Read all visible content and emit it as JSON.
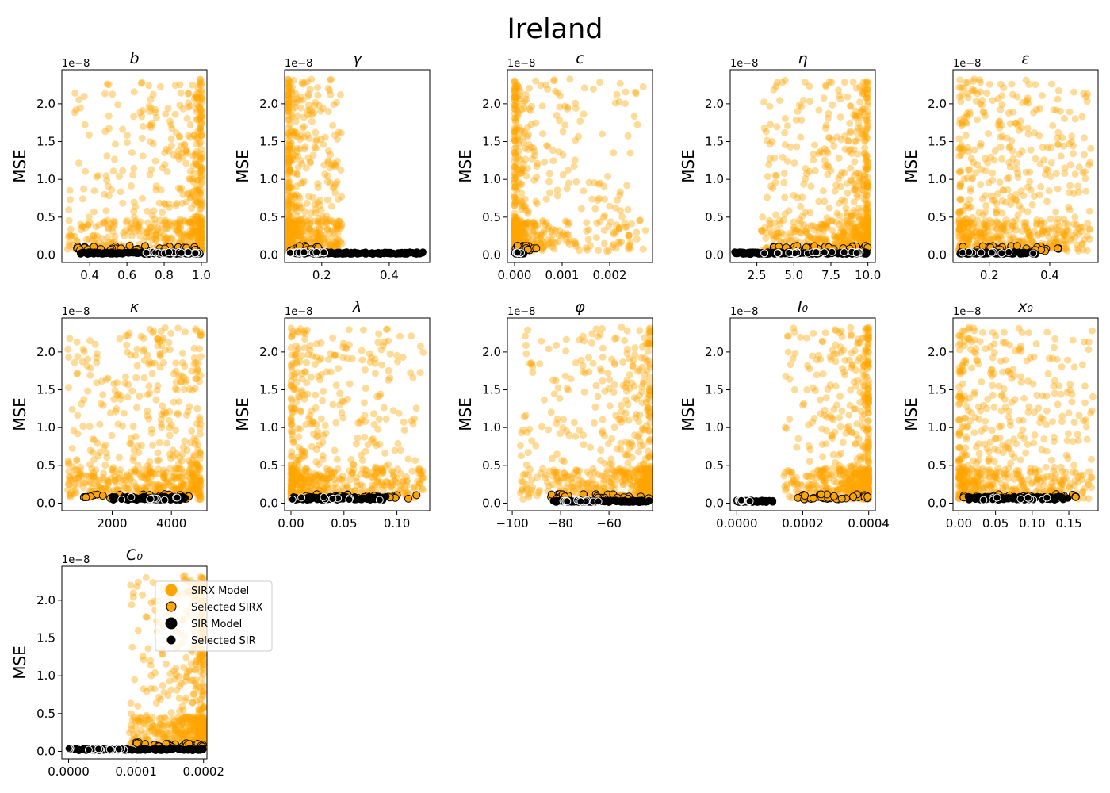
{
  "figure": {
    "title": "Ireland"
  },
  "legend": {
    "placement": "upper-center-of-last-panel",
    "entries": [
      {
        "label": "SIRX Model",
        "color": "#ffa500",
        "edge": "none"
      },
      {
        "label": "Selected SIRX",
        "color": "#ffa500",
        "edge": "#000000"
      },
      {
        "label": "SIR Model",
        "color": "#000000",
        "edge": "none"
      },
      {
        "label": "Selected SIR",
        "color": "#000000",
        "edge": "#ffffff"
      }
    ]
  },
  "chart_data": [
    {
      "type": "scatter",
      "title": "b",
      "ylabel": "MSE",
      "y_offset_label": "1e−8",
      "xlim": [
        0.25,
        1.03
      ],
      "ylim": [
        -0.1,
        2.45
      ],
      "xticks": [
        0.4,
        0.6,
        0.8,
        1.0
      ],
      "xtick_labels": [
        "0.4",
        "0.6",
        "0.8",
        "1.0"
      ],
      "yticks": [
        0.0,
        0.5,
        1.0,
        1.5,
        2.0
      ],
      "ytick_labels": [
        "0.0",
        "0.5",
        "1.0",
        "1.5",
        "2.0"
      ],
      "series": [
        {
          "name": "SIRX Model",
          "x_range": [
            0.28,
            1.0
          ],
          "y_range": [
            0.05,
            2.33
          ],
          "count": 620,
          "x_bias": 0.6
        },
        {
          "name": "Selected SIRX",
          "x_range": [
            0.32,
            0.98
          ],
          "y_range": [
            0.05,
            0.12
          ],
          "count": 34
        },
        {
          "name": "SIR Model",
          "x_range": [
            0.35,
            1.0
          ],
          "y_range": [
            0.01,
            0.04
          ],
          "count": 140
        },
        {
          "name": "Selected SIR",
          "x_range": [
            0.68,
            1.0
          ],
          "y_range": [
            0.02,
            0.04
          ],
          "count": 22
        }
      ]
    },
    {
      "type": "scatter",
      "title": "γ",
      "ylabel": "MSE",
      "y_offset_label": "1e−8",
      "xlim": [
        0.09,
        0.52
      ],
      "ylim": [
        -0.1,
        2.45
      ],
      "xticks": [
        0.2,
        0.4
      ],
      "xtick_labels": [
        "0.2",
        "0.4"
      ],
      "yticks": [
        0.0,
        0.5,
        1.0,
        1.5,
        2.0
      ],
      "ytick_labels": [
        "0.0",
        "0.5",
        "1.0",
        "1.5",
        "2.0"
      ],
      "series": [
        {
          "name": "SIRX Model",
          "x_range": [
            0.1,
            0.26
          ],
          "y_range": [
            0.05,
            2.33
          ],
          "count": 620,
          "x_bias": -0.7
        },
        {
          "name": "Selected SIRX",
          "x_range": [
            0.1,
            0.2
          ],
          "y_range": [
            0.05,
            0.12
          ],
          "count": 20
        },
        {
          "name": "SIR Model",
          "x_range": [
            0.12,
            0.5
          ],
          "y_range": [
            0.01,
            0.04
          ],
          "count": 160
        },
        {
          "name": "Selected SIR",
          "x_range": [
            0.1,
            0.21
          ],
          "y_range": [
            0.02,
            0.04
          ],
          "count": 22
        }
      ]
    },
    {
      "type": "scatter",
      "title": "c",
      "ylabel": "MSE",
      "y_offset_label": "1e−8",
      "xlim": [
        -0.00015,
        0.0029
      ],
      "ylim": [
        -0.1,
        2.45
      ],
      "xticks": [
        0.0,
        0.001,
        0.002
      ],
      "xtick_labels": [
        "0.000",
        "0.001",
        "0.002"
      ],
      "yticks": [
        0.0,
        0.5,
        1.0,
        1.5,
        2.0
      ],
      "ytick_labels": [
        "0.0",
        "0.5",
        "1.0",
        "1.5",
        "2.0"
      ],
      "series": [
        {
          "name": "SIRX Model",
          "x_range": [
            0.0,
            0.0028
          ],
          "y_range": [
            0.05,
            2.33
          ],
          "count": 560,
          "x_bias": -0.92
        },
        {
          "name": "Selected SIRX",
          "x_range": [
            0.0,
            0.0005
          ],
          "y_range": [
            0.05,
            0.12
          ],
          "count": 18
        },
        {
          "name": "SIR Model",
          "x_range": [
            0.0,
            0.0002
          ],
          "y_range": [
            0.01,
            0.04
          ],
          "count": 40
        },
        {
          "name": "Selected SIR",
          "x_range": [
            0.0,
            0.00015
          ],
          "y_range": [
            0.02,
            0.04
          ],
          "count": 8
        }
      ]
    },
    {
      "type": "scatter",
      "title": "η",
      "ylabel": "MSE",
      "y_offset_label": "1e−8",
      "xlim": [
        0.7,
        10.5
      ],
      "ylim": [
        -0.1,
        2.45
      ],
      "xticks": [
        2.5,
        5.0,
        7.5,
        10.0
      ],
      "xtick_labels": [
        "2.5",
        "5.0",
        "7.5",
        "10.0"
      ],
      "yticks": [
        0.0,
        0.5,
        1.0,
        1.5,
        2.0
      ],
      "ytick_labels": [
        "0.0",
        "0.5",
        "1.0",
        "1.5",
        "2.0"
      ],
      "series": [
        {
          "name": "SIRX Model",
          "x_range": [
            2.8,
            10.0
          ],
          "y_range": [
            0.05,
            2.33
          ],
          "count": 620,
          "x_bias": 0.5
        },
        {
          "name": "Selected SIRX",
          "x_range": [
            3.5,
            10.0
          ],
          "y_range": [
            0.05,
            0.12
          ],
          "count": 34
        },
        {
          "name": "SIR Model",
          "x_range": [
            1.0,
            10.0
          ],
          "y_range": [
            0.01,
            0.04
          ],
          "count": 160
        },
        {
          "name": "Selected SIR",
          "x_range": [
            3.0,
            9.5
          ],
          "y_range": [
            0.02,
            0.04
          ],
          "count": 22
        }
      ]
    },
    {
      "type": "scatter",
      "title": "ε",
      "ylabel": "MSE",
      "y_offset_label": "1e−8",
      "xlim": [
        0.08,
        0.56
      ],
      "ylim": [
        -0.1,
        2.45
      ],
      "xticks": [
        0.2,
        0.4
      ],
      "xtick_labels": [
        "0.2",
        "0.4"
      ],
      "yticks": [
        0.0,
        0.5,
        1.0,
        1.5,
        2.0
      ],
      "ytick_labels": [
        "0.0",
        "0.5",
        "1.0",
        "1.5",
        "2.0"
      ],
      "series": [
        {
          "name": "SIRX Model",
          "x_range": [
            0.1,
            0.54
          ],
          "y_range": [
            0.05,
            2.33
          ],
          "count": 600,
          "x_bias": -0.2
        },
        {
          "name": "Selected SIRX",
          "x_range": [
            0.1,
            0.43
          ],
          "y_range": [
            0.05,
            0.12
          ],
          "count": 30
        },
        {
          "name": "SIR Model",
          "x_range": [
            0.1,
            0.36
          ],
          "y_range": [
            0.01,
            0.04
          ],
          "count": 120
        },
        {
          "name": "Selected SIR",
          "x_range": [
            0.11,
            0.35
          ],
          "y_range": [
            0.02,
            0.04
          ],
          "count": 10
        }
      ]
    },
    {
      "type": "scatter",
      "title": "κ",
      "ylabel": "MSE",
      "y_offset_label": "1e−8",
      "xlim": [
        300,
        5200
      ],
      "ylim": [
        -0.1,
        2.45
      ],
      "xticks": [
        2000,
        4000
      ],
      "xtick_labels": [
        "2000",
        "4000"
      ],
      "yticks": [
        0.0,
        0.5,
        1.0,
        1.5,
        2.0
      ],
      "ytick_labels": [
        "0.0",
        "0.5",
        "1.0",
        "1.5",
        "2.0"
      ],
      "series": [
        {
          "name": "SIRX Model",
          "x_range": [
            500,
            5000
          ],
          "y_range": [
            0.05,
            2.33
          ],
          "count": 600,
          "x_bias": 0.15
        },
        {
          "name": "Selected SIRX",
          "x_range": [
            1000,
            4600
          ],
          "y_range": [
            0.05,
            0.12
          ],
          "count": 32
        },
        {
          "name": "SIR Model",
          "x_range": [
            2000,
            4500
          ],
          "y_range": [
            0.04,
            0.09
          ],
          "count": 90
        },
        {
          "name": "Selected SIR",
          "x_range": [
            2200,
            4400
          ],
          "y_range": [
            0.04,
            0.08
          ],
          "count": 10
        }
      ]
    },
    {
      "type": "scatter",
      "title": "λ",
      "ylabel": "MSE",
      "y_offset_label": "1e−8",
      "xlim": [
        -0.006,
        0.131
      ],
      "ylim": [
        -0.1,
        2.45
      ],
      "xticks": [
        0.0,
        0.05,
        0.1
      ],
      "xtick_labels": [
        "0.00",
        "0.05",
        "0.10"
      ],
      "yticks": [
        0.0,
        0.5,
        1.0,
        1.5,
        2.0
      ],
      "ytick_labels": [
        "0.0",
        "0.5",
        "1.0",
        "1.5",
        "2.0"
      ],
      "series": [
        {
          "name": "SIRX Model",
          "x_range": [
            0.0,
            0.125
          ],
          "y_range": [
            0.05,
            2.33
          ],
          "count": 600,
          "x_bias": -0.35
        },
        {
          "name": "Selected SIRX",
          "x_range": [
            0.0,
            0.12
          ],
          "y_range": [
            0.05,
            0.12
          ],
          "count": 32
        },
        {
          "name": "SIR Model",
          "x_range": [
            0.0,
            0.09
          ],
          "y_range": [
            0.04,
            0.09
          ],
          "count": 90
        },
        {
          "name": "Selected SIR",
          "x_range": [
            0.0,
            0.085
          ],
          "y_range": [
            0.04,
            0.08
          ],
          "count": 10
        }
      ]
    },
    {
      "type": "scatter",
      "title": "φ",
      "ylabel": "MSE",
      "y_offset_label": "1e−8",
      "xlim": [
        -102,
        -42
      ],
      "ylim": [
        -0.1,
        2.45
      ],
      "xticks": [
        -100,
        -80,
        -60
      ],
      "xtick_labels": [
        "−100",
        "−80",
        "−60"
      ],
      "yticks": [
        0.0,
        0.5,
        1.0,
        1.5,
        2.0
      ],
      "ytick_labels": [
        "0.0",
        "0.5",
        "1.0",
        "1.5",
        "2.0"
      ],
      "series": [
        {
          "name": "SIRX Model",
          "x_range": [
            -98,
            -43
          ],
          "y_range": [
            0.05,
            2.33
          ],
          "count": 600,
          "x_bias": 0.5
        },
        {
          "name": "Selected SIRX",
          "x_range": [
            -86,
            -43
          ],
          "y_range": [
            0.05,
            0.12
          ],
          "count": 32
        },
        {
          "name": "SIR Model",
          "x_range": [
            -83,
            -43
          ],
          "y_range": [
            0.01,
            0.04
          ],
          "count": 140
        },
        {
          "name": "Selected SIR",
          "x_range": [
            -80,
            -58
          ],
          "y_range": [
            0.02,
            0.04
          ],
          "count": 16
        }
      ]
    },
    {
      "type": "scatter",
      "title": "I₀",
      "ylabel": "MSE",
      "y_offset_label": "1e−8",
      "xlim": [
        -2e-05,
        0.00042
      ],
      "ylim": [
        -0.1,
        2.45
      ],
      "xticks": [
        0.0,
        0.0002,
        0.0004
      ],
      "xtick_labels": [
        "0.0000",
        "0.0002",
        "0.0004"
      ],
      "yticks": [
        0.0,
        0.5,
        1.0,
        1.5,
        2.0
      ],
      "ytick_labels": [
        "0.0",
        "0.5",
        "1.0",
        "1.5",
        "2.0"
      ],
      "series": [
        {
          "name": "SIRX Model",
          "x_range": [
            0.00014,
            0.0004
          ],
          "y_range": [
            0.05,
            2.33
          ],
          "count": 600,
          "x_bias": 0.55
        },
        {
          "name": "Selected SIRX",
          "x_range": [
            0.00018,
            0.0004
          ],
          "y_range": [
            0.05,
            0.12
          ],
          "count": 32
        },
        {
          "name": "SIR Model",
          "x_range": [
            0.0,
            0.00011
          ],
          "y_range": [
            0.01,
            0.04
          ],
          "count": 60
        },
        {
          "name": "Selected SIR",
          "x_range": [
            0.0,
            4e-05
          ],
          "y_range": [
            0.02,
            0.04
          ],
          "count": 8
        }
      ]
    },
    {
      "type": "scatter",
      "title": "x₀",
      "ylabel": "MSE",
      "y_offset_label": "1e−8",
      "xlim": [
        -0.008,
        0.19
      ],
      "ylim": [
        -0.1,
        2.45
      ],
      "xticks": [
        0.0,
        0.05,
        0.1,
        0.15
      ],
      "xtick_labels": [
        "0.00",
        "0.05",
        "0.10",
        "0.15"
      ],
      "yticks": [
        0.0,
        0.5,
        1.0,
        1.5,
        2.0
      ],
      "ytick_labels": [
        "0.0",
        "0.5",
        "1.0",
        "1.5",
        "2.0"
      ],
      "series": [
        {
          "name": "SIRX Model",
          "x_range": [
            0.0,
            0.185
          ],
          "y_range": [
            0.05,
            2.33
          ],
          "count": 600,
          "x_bias": -0.3
        },
        {
          "name": "Selected SIRX",
          "x_range": [
            0.0,
            0.16
          ],
          "y_range": [
            0.05,
            0.12
          ],
          "count": 32
        },
        {
          "name": "SIR Model",
          "x_range": [
            0.01,
            0.15
          ],
          "y_range": [
            0.04,
            0.09
          ],
          "count": 90
        },
        {
          "name": "Selected SIR",
          "x_range": [
            0.02,
            0.14
          ],
          "y_range": [
            0.04,
            0.08
          ],
          "count": 10
        }
      ]
    },
    {
      "type": "scatter",
      "title": "C₀",
      "ylabel": "MSE",
      "y_offset_label": "1e−8",
      "xlim": [
        -1e-05,
        0.000205
      ],
      "ylim": [
        -0.1,
        2.45
      ],
      "xticks": [
        0.0,
        0.0001,
        0.0002
      ],
      "xtick_labels": [
        "0.0000",
        "0.0001",
        "0.0002"
      ],
      "yticks": [
        0.0,
        0.5,
        1.0,
        1.5,
        2.0
      ],
      "ytick_labels": [
        "0.0",
        "0.5",
        "1.0",
        "1.5",
        "2.0"
      ],
      "series": [
        {
          "name": "SIRX Model",
          "x_range": [
            9e-05,
            0.0002
          ],
          "y_range": [
            0.05,
            2.33
          ],
          "count": 560,
          "x_bias": 0.55
        },
        {
          "name": "Selected SIRX",
          "x_range": [
            9e-05,
            0.0002
          ],
          "y_range": [
            0.05,
            0.12
          ],
          "count": 28
        },
        {
          "name": "SIR Model",
          "x_range": [
            0.0,
            0.0002
          ],
          "y_range": [
            0.01,
            0.04
          ],
          "count": 120
        },
        {
          "name": "Selected SIR",
          "x_range": [
            0.0,
            9e-05
          ],
          "y_range": [
            0.02,
            0.04
          ],
          "count": 16
        }
      ]
    }
  ]
}
